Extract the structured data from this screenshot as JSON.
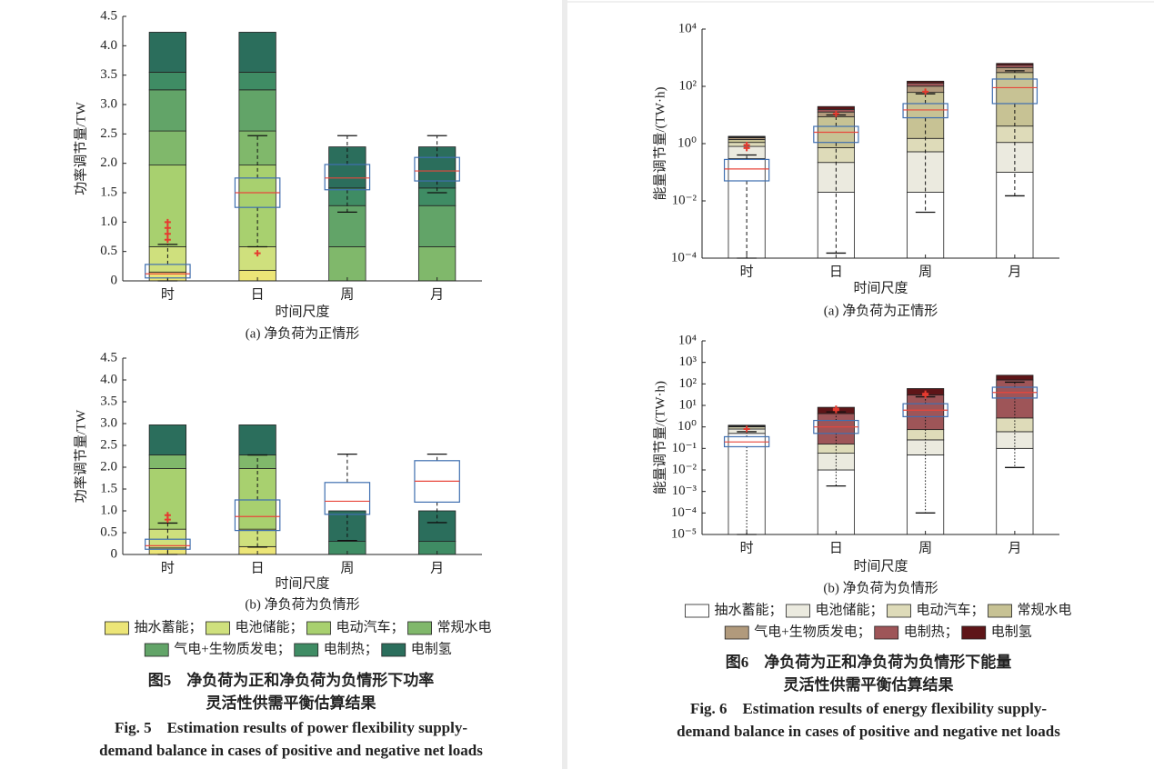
{
  "chart_data": [
    {
      "type": "bar",
      "stacked": true,
      "log": false,
      "subtitle": "(a) 净负荷为正情形",
      "xlabel": "时间尺度",
      "ylabel": "功率调节量/TW",
      "categories": [
        "时",
        "日",
        "周",
        "月"
      ],
      "ylim": [
        0,
        4.5
      ],
      "yticks": [
        0,
        0.5,
        {
          "value": 1,
          "label": "1.0"
        },
        1.5,
        {
          "value": 2,
          "label": "2.0"
        },
        2.5,
        {
          "value": 3,
          "label": "3.0"
        },
        3.5,
        {
          "value": 4,
          "label": "4.0"
        },
        4.5
      ],
      "series": [
        {
          "name": "抽水蓄能",
          "color": "#ece577",
          "values": [
            0.15,
            0.18,
            0,
            0
          ]
        },
        {
          "name": "电池储能",
          "color": "#cfe07d",
          "values": [
            0.43,
            0.4,
            0,
            0
          ]
        },
        {
          "name": "电动汽车",
          "color": "#a8d06f",
          "values": [
            1.39,
            1.39,
            0,
            0
          ]
        },
        {
          "name": "常规水电",
          "color": "#80b86b",
          "values": [
            0.58,
            0.58,
            0.58,
            0.58
          ]
        },
        {
          "name": "气电+生物质发电",
          "color": "#62a468",
          "values": [
            0.7,
            0.7,
            0.7,
            0.7
          ]
        },
        {
          "name": "电制热",
          "color": "#3f8c64",
          "values": [
            0.3,
            0.3,
            0.3,
            0.3
          ]
        },
        {
          "name": "电制氢",
          "color": "#2b6e5c",
          "values": [
            0.68,
            0.68,
            0.7,
            0.7
          ]
        }
      ],
      "box_color": "#3f6fb0",
      "median_color": "#e8473c",
      "boxes": [
        {
          "low": 0,
          "q1": 0.05,
          "median": 0.12,
          "q3": 0.28,
          "high": 0.62,
          "outliers": [
            0.7,
            0.8,
            0.9,
            1.0
          ]
        },
        {
          "low": 0.58,
          "q1": 1.25,
          "median": 1.5,
          "q3": 1.75,
          "high": 2.47,
          "outliers": [
            0.47
          ]
        },
        {
          "low": 1.17,
          "q1": 1.55,
          "median": 1.75,
          "q3": 1.98,
          "high": 2.47,
          "outliers": []
        },
        {
          "low": 1.5,
          "q1": 1.7,
          "median": 1.87,
          "q3": 2.1,
          "high": 2.47,
          "outliers": []
        }
      ]
    },
    {
      "type": "bar",
      "stacked": true,
      "log": false,
      "subtitle": "(b) 净负荷为负情形",
      "xlabel": "时间尺度",
      "ylabel": "功率调节量/TW",
      "categories": [
        "时",
        "日",
        "周",
        "月"
      ],
      "ylim": [
        0,
        4.5
      ],
      "yticks": [
        0,
        0.5,
        {
          "value": 1,
          "label": "1.0"
        },
        1.5,
        {
          "value": 2,
          "label": "2.0"
        },
        2.5,
        {
          "value": 3,
          "label": "3.0"
        },
        3.5,
        {
          "value": 4,
          "label": "4.0"
        },
        4.5
      ],
      "series": [
        {
          "name": "抽水蓄能",
          "color": "#ece577",
          "values": [
            0.15,
            0.18,
            0,
            0
          ]
        },
        {
          "name": "电池储能",
          "color": "#cfe07d",
          "values": [
            0.43,
            0.4,
            0,
            0
          ]
        },
        {
          "name": "电动汽车",
          "color": "#a8d06f",
          "values": [
            1.39,
            1.39,
            0,
            0
          ]
        },
        {
          "name": "常规水电",
          "color": "#80b86b",
          "values": [
            0.31,
            0.31,
            0,
            0
          ]
        },
        {
          "name": "气电+生物质发电",
          "color": "#62a468",
          "values": [
            0,
            0,
            0,
            0
          ]
        },
        {
          "name": "电制热",
          "color": "#3f8c64",
          "values": [
            0,
            0,
            0.3,
            0.3
          ]
        },
        {
          "name": "电制氢",
          "color": "#2b6e5c",
          "values": [
            0.69,
            0.69,
            0.7,
            0.7
          ]
        }
      ],
      "box_color": "#3f6fb0",
      "median_color": "#e8473c",
      "boxes": [
        {
          "low": 0,
          "q1": 0.12,
          "median": 0.2,
          "q3": 0.35,
          "high": 0.72,
          "outliers": [
            0.8,
            0.9
          ]
        },
        {
          "low": 0.17,
          "q1": 0.55,
          "median": 0.87,
          "q3": 1.25,
          "high": 2.28,
          "outliers": []
        },
        {
          "low": 0.32,
          "q1": 0.92,
          "median": 1.22,
          "q3": 1.65,
          "high": 2.3,
          "outliers": []
        },
        {
          "low": 0.73,
          "q1": 1.2,
          "median": 1.68,
          "q3": 2.15,
          "high": 2.3,
          "outliers": []
        }
      ]
    },
    {
      "type": "bar",
      "stacked": true,
      "log": true,
      "subtitle": "(a) 净负荷为正情形",
      "xlabel": "时间尺度",
      "ylabel": "能量调节量/(TW·h)",
      "categories": [
        "时",
        "日",
        "周",
        "月"
      ],
      "ylim": [
        0.0001,
        10000
      ],
      "yticks": [
        {
          "value": 0.0001,
          "label": "10⁻⁴"
        },
        {
          "value": 0.01,
          "label": "10⁻²"
        },
        {
          "value": 1,
          "label": "10⁰"
        },
        {
          "value": 100,
          "label": "10²"
        },
        {
          "value": 10000,
          "label": "10⁴"
        }
      ],
      "series": [
        {
          "name": "抽水蓄能",
          "color": "#ffffff",
          "values": [
            0.3,
            0.02,
            0.02,
            0.1
          ]
        },
        {
          "name": "电池储能",
          "color": "#ebeadf",
          "values": [
            0.5,
            0.2,
            0.5,
            1
          ]
        },
        {
          "name": "电动汽车",
          "color": "#dedbb9",
          "values": [
            0.3,
            0.5,
            1,
            3
          ]
        },
        {
          "name": "常规水电",
          "color": "#c7c294",
          "values": [
            0.3,
            8,
            60,
            300
          ]
        },
        {
          "name": "气电+生物质发电",
          "color": "#b19a7c",
          "values": [
            0.2,
            4,
            40,
            150
          ]
        },
        {
          "name": "电制热",
          "color": "#9e5558",
          "values": [
            0.1,
            3,
            30,
            100
          ]
        },
        {
          "name": "电制氢",
          "color": "#5e1518",
          "values": [
            0.1,
            4,
            20,
            80
          ]
        }
      ],
      "box_color": "#3f6fb0",
      "median_color": "#e8473c",
      "boxes": [
        {
          "low": 0.0001,
          "q1": 0.05,
          "median": 0.13,
          "q3": 0.28,
          "high": 0.4,
          "outliers": [
            0.7,
            0.9
          ]
        },
        {
          "low": 0.00015,
          "q1": 1.1,
          "median": 2.5,
          "q3": 4,
          "high": 10,
          "outliers": [
            11
          ]
        },
        {
          "low": 0.004,
          "q1": 8,
          "median": 15,
          "q3": 25,
          "high": 55,
          "outliers": [
            65
          ]
        },
        {
          "low": 0.015,
          "q1": 25,
          "median": 90,
          "q3": 180,
          "high": 350,
          "outliers": []
        }
      ]
    },
    {
      "type": "bar",
      "stacked": true,
      "log": true,
      "subtitle": "(b) 净负荷为负情形",
      "xlabel": "时间尺度",
      "ylabel": "能量调节量/(TW·h)",
      "categories": [
        "时",
        "日",
        "周",
        "月"
      ],
      "ylim": [
        1e-05,
        10000
      ],
      "yticks": [
        {
          "value": 1e-05,
          "label": "10⁻⁵"
        },
        {
          "value": 0.0001,
          "label": "10⁻⁴"
        },
        {
          "value": 0.001,
          "label": "10⁻³"
        },
        {
          "value": 0.01,
          "label": "10⁻²"
        },
        {
          "value": 0.1,
          "label": "10⁻¹"
        },
        {
          "value": 1,
          "label": "10⁰"
        },
        {
          "value": 10,
          "label": "10¹"
        },
        {
          "value": 100,
          "label": "10²"
        },
        {
          "value": 1000,
          "label": "10³"
        },
        {
          "value": 10000,
          "label": "10⁴"
        }
      ],
      "series": [
        {
          "name": "抽水蓄能",
          "color": "#ffffff",
          "values": [
            0.5,
            0.01,
            0.05,
            0.1
          ]
        },
        {
          "name": "电池储能",
          "color": "#ebeadf",
          "values": [
            0.3,
            0.05,
            0.2,
            0.5
          ]
        },
        {
          "name": "电动汽车",
          "color": "#dedbb9",
          "values": [
            0.2,
            0.1,
            0.5,
            2
          ]
        },
        {
          "name": "常规水电",
          "color": "#c7c294",
          "values": [
            0.05,
            0,
            0,
            0
          ]
        },
        {
          "name": "气电+生物质发电",
          "color": "#b19a7c",
          "values": [
            0.05,
            0,
            0,
            0
          ]
        },
        {
          "name": "电制热",
          "color": "#9e5558",
          "values": [
            0.05,
            4,
            30,
            150
          ]
        },
        {
          "name": "电制氢",
          "color": "#5e1518",
          "values": [
            0.05,
            4,
            30,
            100
          ]
        }
      ],
      "box_color": "#3f6fb0",
      "median_color": "#e8473c",
      "boxes": [
        {
          "low": 1e-05,
          "q1": 0.12,
          "median": 0.2,
          "q3": 0.35,
          "high": 0.6,
          "outliers": [
            0.8
          ]
        },
        {
          "low": 0.0018,
          "q1": 0.5,
          "median": 1,
          "q3": 2,
          "high": 5,
          "outliers": [
            6,
            7
          ]
        },
        {
          "low": 0.0001,
          "q1": 3,
          "median": 6,
          "q3": 12,
          "high": 25,
          "outliers": [
            30,
            35
          ]
        },
        {
          "low": 0.013,
          "q1": 22,
          "median": 40,
          "q3": 70,
          "high": 120,
          "outliers": []
        }
      ]
    }
  ],
  "legend_separator": "；",
  "figures": [
    {
      "caption_cn": [
        "图5　净负荷为正和净负荷为负情形下功率",
        "灵活性供需平衡估算结果"
      ],
      "caption_en": [
        "Fig. 5　Estimation results of power flexibility supply-",
        "demand balance in cases of positive and negative net loads"
      ]
    },
    {
      "caption_cn": [
        "图6　净负荷为正和净负荷为负情形下能量",
        "灵活性供需平衡估算结果"
      ],
      "caption_en": [
        "Fig. 6　Estimation results of energy flexibility supply-",
        "demand balance in cases of positive and negative net loads"
      ]
    }
  ]
}
